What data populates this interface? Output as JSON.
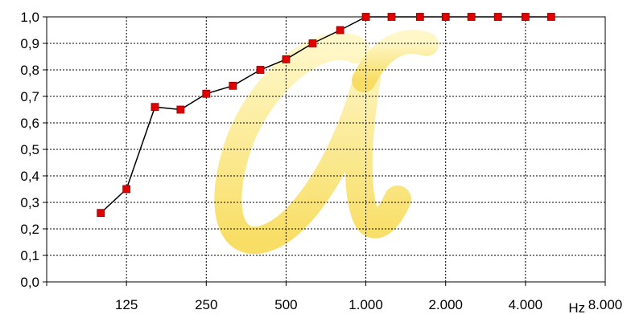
{
  "chart_data": {
    "type": "line",
    "title": "",
    "xlabel": "Hz",
    "ylabel": "",
    "x_scale": "log2",
    "x": [
      100,
      125,
      160,
      200,
      250,
      315,
      400,
      500,
      630,
      800,
      1000,
      1250,
      1600,
      2000,
      2500,
      3150,
      4000,
      5000
    ],
    "series": [
      {
        "values": [
          0.26,
          0.35,
          0.66,
          0.65,
          0.71,
          0.74,
          0.8,
          0.84,
          0.9,
          0.95,
          1.0,
          1.0,
          1.0,
          1.0,
          1.0,
          1.0,
          1.0,
          1.0
        ]
      }
    ],
    "x_ticks": [
      125,
      250,
      500,
      1000,
      2000,
      4000,
      8000
    ],
    "x_tick_labels": [
      "125",
      "250",
      "500",
      "1.000",
      "2.000",
      "4.000",
      "8.000"
    ],
    "y_ticks": [
      0,
      0.1,
      0.2,
      0.3,
      0.4,
      0.5,
      0.6,
      0.7,
      0.8,
      0.9,
      1.0
    ],
    "y_tick_labels": [
      "0,0",
      "0,1",
      "0,2",
      "0,3",
      "0,4",
      "0,5",
      "0,6",
      "0,7",
      "0,8",
      "0,9",
      "1,0"
    ],
    "xlim": [
      62.5,
      8000
    ],
    "ylim": [
      0,
      1.0
    ],
    "grid": true,
    "legend": "none",
    "watermark": "alpha-symbol",
    "colors": {
      "line": "#000000",
      "marker": "#e00000",
      "marker_edge": "#8a0000",
      "grid": "#000000",
      "watermark": "#f7d84a"
    }
  }
}
